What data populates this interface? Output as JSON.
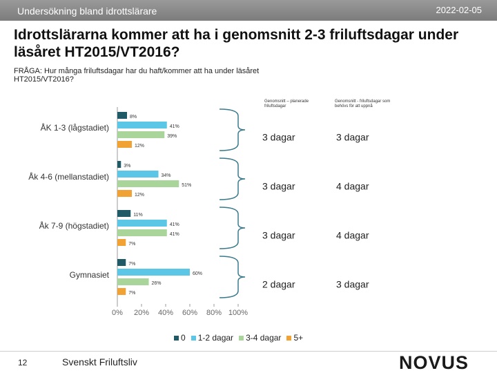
{
  "header": {
    "left": "Undersökning bland idrottslärare",
    "date": "2022-02-05"
  },
  "title": "Idrottslärarna kommer att ha i genomsnitt 2-3 friluftsdagar under läsåret HT2015/VT2016?",
  "question": "FRÅGA: Hur många friluftsdagar har du haft/kommer att ha under läsåret HT2015/VT2016?",
  "chart_data": {
    "type": "bar",
    "orientation": "horizontal",
    "categories": [
      "ÅK 1-3 (lågstadiet)",
      "Åk 4-6 (mellanstadiet)",
      "Åk 7-9 (högstadiet)",
      "Gymnasiet"
    ],
    "series": [
      {
        "name": "0",
        "color": "#1f5a66",
        "values": [
          8,
          3,
          11,
          7
        ],
        "value_labels": [
          "8%",
          "3%",
          "11%",
          "7%"
        ]
      },
      {
        "name": "1-2 dagar",
        "color": "#5cc6e6",
        "values": [
          41,
          34,
          41,
          60
        ],
        "value_labels": [
          "41%",
          "34%",
          "41%",
          "60%"
        ]
      },
      {
        "name": "3-4 dagar",
        "color": "#a9d49a",
        "values": [
          39,
          51,
          41,
          26
        ],
        "value_labels": [
          "39%",
          "51%",
          "41%",
          "26%"
        ]
      },
      {
        "name": "5+",
        "color": "#f0a334",
        "values": [
          12,
          12,
          7,
          7
        ],
        "value_labels": [
          "12%",
          "12%",
          "7%",
          "7%"
        ]
      }
    ],
    "xlim": [
      0,
      100
    ],
    "xticks": [
      {
        "value": 0,
        "label": "0%"
      },
      {
        "value": 20,
        "label": "20%"
      },
      {
        "value": 40,
        "label": "40%"
      },
      {
        "value": 60,
        "label": "60%"
      },
      {
        "value": 80,
        "label": "80%"
      },
      {
        "value": 100,
        "label": "100%"
      }
    ],
    "legend": "bottom"
  },
  "summary": {
    "columns": [
      "Genomsnitt – planerade friluftsdagar",
      "Genomsnitt - friluftsdagar som behövs för att uppnå"
    ],
    "rows": [
      [
        "3 dagar",
        "3 dagar"
      ],
      [
        "3 dagar",
        "4 dagar"
      ],
      [
        "3 dagar",
        "4 dagar"
      ],
      [
        "2 dagar",
        "3 dagar"
      ]
    ]
  },
  "footer": {
    "page": "12",
    "org": "Svenskt Friluftsliv",
    "logo": "NOVUS"
  }
}
